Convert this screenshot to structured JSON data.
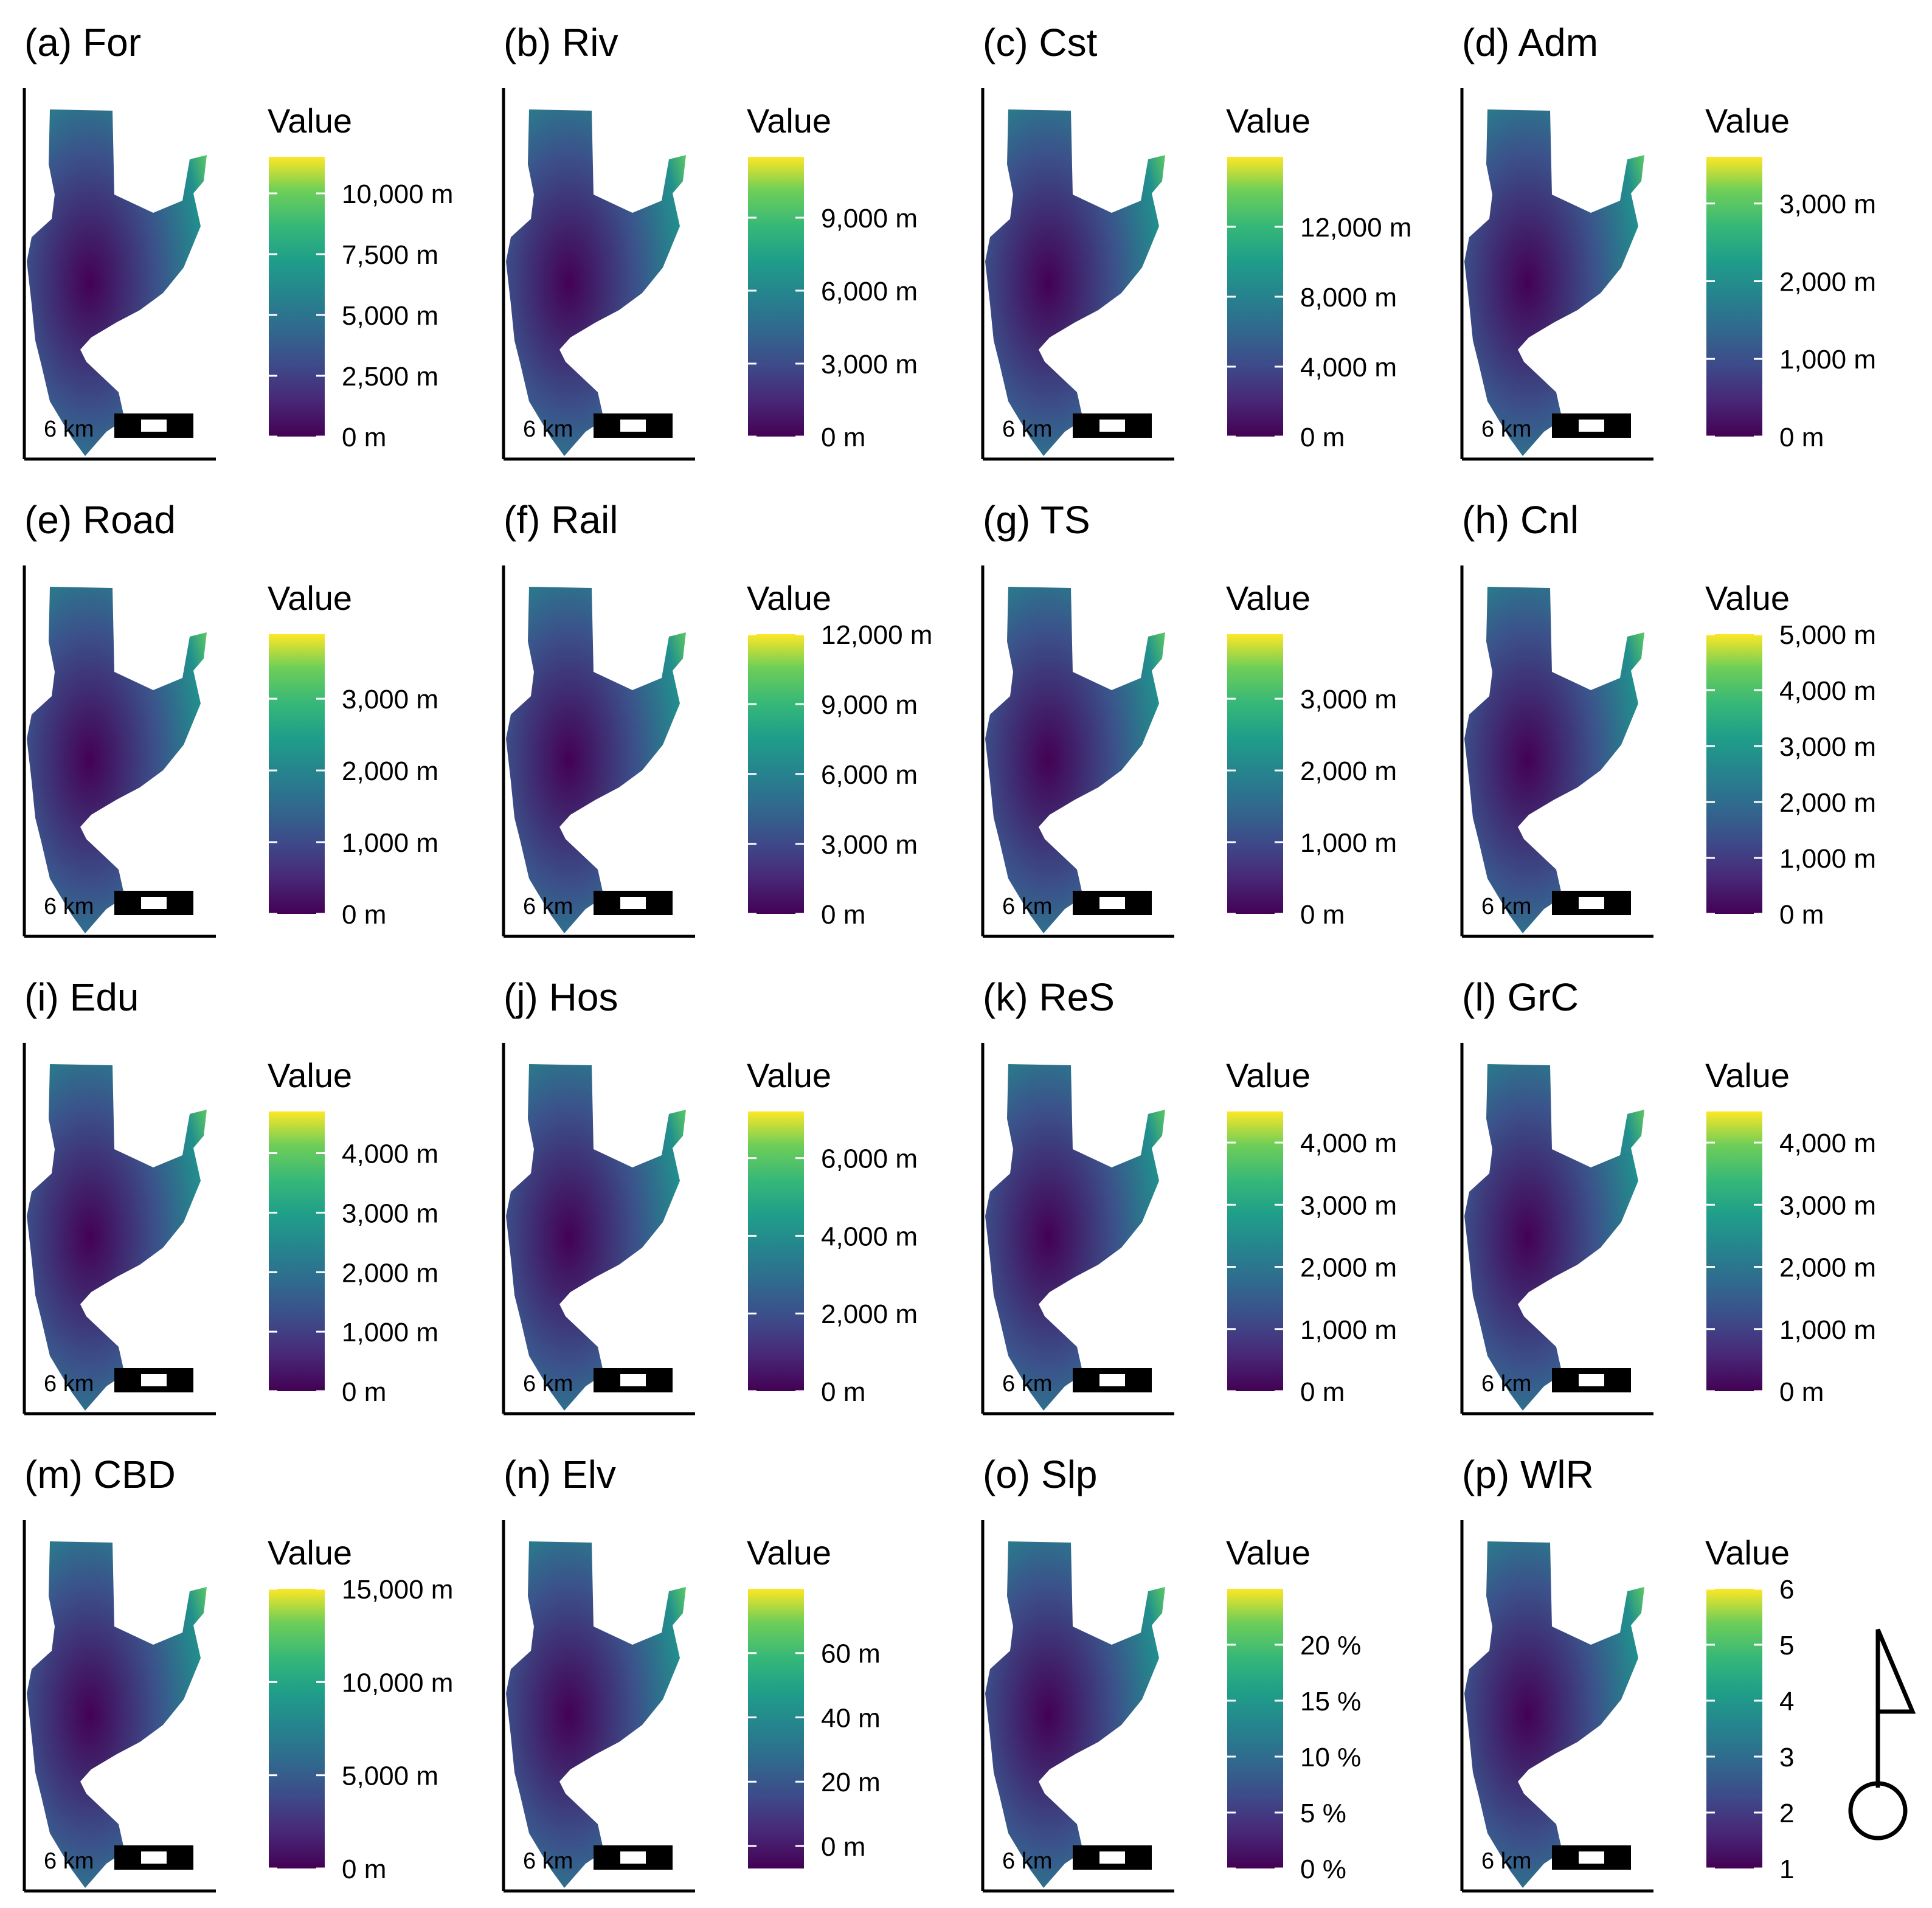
{
  "chart_data": [
    {
      "type": "heatmap",
      "label": "(a)",
      "title": "For",
      "legend_title": "Value",
      "scale_label": "6 km",
      "value_range": [
        0,
        11500
      ],
      "ticks": [
        0,
        2500,
        5000,
        7500,
        10000
      ],
      "tick_labels": [
        "0 m",
        "2,500 m",
        "5,000 m",
        "7,500 m",
        "10,000 m"
      ]
    },
    {
      "type": "heatmap",
      "label": "(b)",
      "title": "Riv",
      "legend_title": "Value",
      "scale_label": "6 km",
      "value_range": [
        0,
        11500
      ],
      "ticks": [
        0,
        3000,
        6000,
        9000
      ],
      "tick_labels": [
        "0 m",
        "3,000 m",
        "6,000 m",
        "9,000 m"
      ]
    },
    {
      "type": "heatmap",
      "label": "(c)",
      "title": "Cst",
      "legend_title": "Value",
      "scale_label": "6 km",
      "value_range": [
        0,
        16000
      ],
      "ticks": [
        0,
        4000,
        8000,
        12000
      ],
      "tick_labels": [
        "0 m",
        "4,000 m",
        "8,000 m",
        "12,000 m"
      ]
    },
    {
      "type": "heatmap",
      "label": "(d)",
      "title": "Adm",
      "legend_title": "Value",
      "scale_label": "6 km",
      "value_range": [
        0,
        3600
      ],
      "ticks": [
        0,
        1000,
        2000,
        3000
      ],
      "tick_labels": [
        "0 m",
        "1,000 m",
        "2,000 m",
        "3,000 m"
      ]
    },
    {
      "type": "heatmap",
      "label": "(e)",
      "title": "Road",
      "legend_title": "Value",
      "scale_label": "6 km",
      "value_range": [
        0,
        3900
      ],
      "ticks": [
        0,
        1000,
        2000,
        3000
      ],
      "tick_labels": [
        "0 m",
        "1,000 m",
        "2,000 m",
        "3,000 m"
      ]
    },
    {
      "type": "heatmap",
      "label": "(f)",
      "title": "Rail",
      "legend_title": "Value",
      "scale_label": "6 km",
      "value_range": [
        0,
        12000
      ],
      "ticks": [
        0,
        3000,
        6000,
        9000,
        12000
      ],
      "tick_labels": [
        "0 m",
        "3,000 m",
        "6,000 m",
        "9,000 m",
        "12,000 m"
      ]
    },
    {
      "type": "heatmap",
      "label": "(g)",
      "title": "TS",
      "legend_title": "Value",
      "scale_label": "6 km",
      "value_range": [
        0,
        3900
      ],
      "ticks": [
        0,
        1000,
        2000,
        3000
      ],
      "tick_labels": [
        "0 m",
        "1,000 m",
        "2,000 m",
        "3,000 m"
      ]
    },
    {
      "type": "heatmap",
      "label": "(h)",
      "title": "Cnl",
      "legend_title": "Value",
      "scale_label": "6 km",
      "value_range": [
        0,
        5000
      ],
      "ticks": [
        0,
        1000,
        2000,
        3000,
        4000,
        5000
      ],
      "tick_labels": [
        "0 m",
        "1,000 m",
        "2,000 m",
        "3,000 m",
        "4,000 m",
        "5,000 m"
      ]
    },
    {
      "type": "heatmap",
      "label": "(i)",
      "title": "Edu",
      "legend_title": "Value",
      "scale_label": "6 km",
      "value_range": [
        0,
        4700
      ],
      "ticks": [
        0,
        1000,
        2000,
        3000,
        4000
      ],
      "tick_labels": [
        "0 m",
        "1,000 m",
        "2,000 m",
        "3,000 m",
        "4,000 m"
      ]
    },
    {
      "type": "heatmap",
      "label": "(j)",
      "title": "Hos",
      "legend_title": "Value",
      "scale_label": "6 km",
      "value_range": [
        0,
        7200
      ],
      "ticks": [
        0,
        2000,
        4000,
        6000
      ],
      "tick_labels": [
        "0 m",
        "2,000 m",
        "4,000 m",
        "6,000 m"
      ]
    },
    {
      "type": "heatmap",
      "label": "(k)",
      "title": "ReS",
      "legend_title": "Value",
      "scale_label": "6 km",
      "value_range": [
        0,
        4500
      ],
      "ticks": [
        0,
        1000,
        2000,
        3000,
        4000
      ],
      "tick_labels": [
        "0 m",
        "1,000 m",
        "2,000 m",
        "3,000 m",
        "4,000 m"
      ]
    },
    {
      "type": "heatmap",
      "label": "(l)",
      "title": "GrC",
      "legend_title": "Value",
      "scale_label": "6 km",
      "value_range": [
        0,
        4500
      ],
      "ticks": [
        0,
        1000,
        2000,
        3000,
        4000
      ],
      "tick_labels": [
        "0 m",
        "1,000 m",
        "2,000 m",
        "3,000 m",
        "4,000 m"
      ]
    },
    {
      "type": "heatmap",
      "label": "(m)",
      "title": "CBD",
      "legend_title": "Value",
      "scale_label": "6 km",
      "value_range": [
        0,
        15000
      ],
      "ticks": [
        0,
        5000,
        10000,
        15000
      ],
      "tick_labels": [
        "0 m",
        "5,000 m",
        "10,000 m",
        "15,000 m"
      ]
    },
    {
      "type": "heatmap",
      "label": "(n)",
      "title": "Elv",
      "legend_title": "Value",
      "scale_label": "6 km",
      "value_range": [
        -7,
        80
      ],
      "ticks": [
        0,
        20,
        40,
        60
      ],
      "tick_labels": [
        "0 m",
        "20 m",
        "40 m",
        "60 m"
      ]
    },
    {
      "type": "heatmap",
      "label": "(o)",
      "title": "Slp",
      "legend_title": "Value",
      "scale_label": "6 km",
      "value_range": [
        0,
        25
      ],
      "ticks": [
        0,
        5,
        10,
        15,
        20
      ],
      "tick_labels": [
        "0 %",
        "5 %",
        "10 %",
        "15 %",
        "20 %"
      ]
    },
    {
      "type": "heatmap",
      "label": "(p)",
      "title": "WlR",
      "legend_title": "Value",
      "scale_label": "6 km",
      "value_range": [
        1,
        6
      ],
      "ticks": [
        1,
        2,
        3,
        4,
        5,
        6
      ],
      "tick_labels": [
        "1",
        "2",
        "3",
        "4",
        "5",
        "6"
      ]
    }
  ]
}
